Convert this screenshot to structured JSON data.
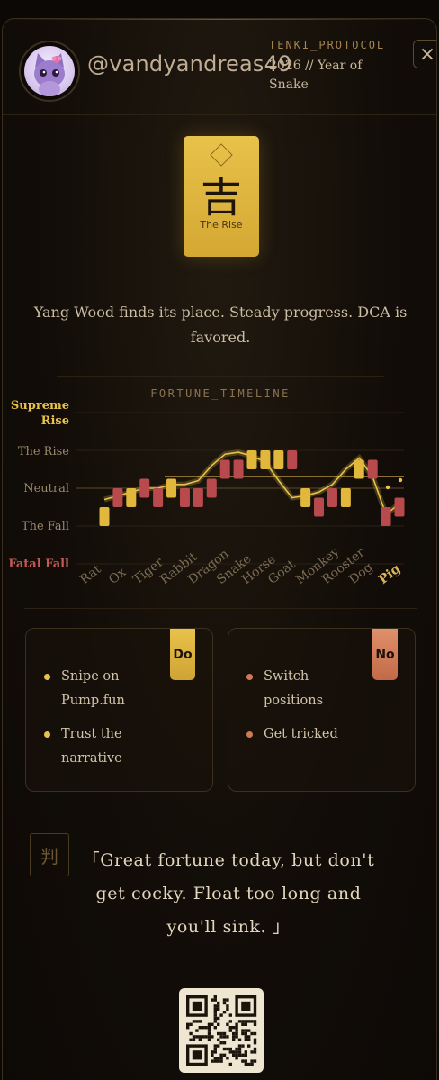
{
  "header": {
    "username": "@vandyandreas49",
    "protocol": "TENKI_PROTOCOL",
    "year_line": "2026 // Year of Snake",
    "close_glyph": "×"
  },
  "card": {
    "kanji": "吉",
    "label": "The Rise"
  },
  "reading": "Yang Wood finds its place. Steady progress. DCA is favored.",
  "timeline": {
    "title": "FORTUNE_TIMELINE",
    "highlight": "Pig"
  },
  "chart_data": {
    "type": "candlestick",
    "title": "FORTUNE_TIMELINE",
    "levels": [
      "Supreme Rise",
      "The Rise",
      "Neutral",
      "The Fall",
      "Fatal Fall"
    ],
    "level_colors": {
      "Supreme Rise": "#e8c24a",
      "The Rise": "#7a6a52",
      "Neutral": "#7a6a52",
      "The Fall": "#7a6a52",
      "Fatal Fall": "#c25a56"
    },
    "categories": [
      "Rat",
      "Ox",
      "Tiger",
      "Rabbit",
      "Dragon",
      "Snake",
      "Horse",
      "Goat",
      "Monkey",
      "Rooster",
      "Dog",
      "Pig"
    ],
    "candles": [
      {
        "open": 2.0,
        "close": 2.5,
        "dir": "up"
      },
      {
        "open": 2.5,
        "close": 3.0,
        "dir": "down"
      },
      {
        "open": 3.0,
        "close": 2.5,
        "dir": "up"
      },
      {
        "open": 2.75,
        "close": 3.25,
        "dir": "down"
      },
      {
        "open": 2.5,
        "close": 3.0,
        "dir": "down"
      },
      {
        "open": 3.25,
        "close": 2.75,
        "dir": "up"
      },
      {
        "open": 3.0,
        "close": 2.5,
        "dir": "down"
      },
      {
        "open": 3.0,
        "close": 2.5,
        "dir": "down"
      },
      {
        "open": 2.75,
        "close": 3.25,
        "dir": "down"
      },
      {
        "open": 3.25,
        "close": 3.75,
        "dir": "down"
      },
      {
        "open": 3.75,
        "close": 3.25,
        "dir": "down"
      },
      {
        "open": 3.5,
        "close": 4.0,
        "dir": "up"
      },
      {
        "open": 3.5,
        "close": 4.0,
        "dir": "up"
      },
      {
        "open": 3.5,
        "close": 4.0,
        "dir": "up"
      },
      {
        "open": 3.5,
        "close": 4.0,
        "dir": "down"
      },
      {
        "open": 3.0,
        "close": 2.5,
        "dir": "up"
      },
      {
        "open": 2.25,
        "close": 2.75,
        "dir": "down"
      },
      {
        "open": 2.5,
        "close": 3.0,
        "dir": "down"
      },
      {
        "open": 2.5,
        "close": 3.0,
        "dir": "up"
      },
      {
        "open": 3.25,
        "close": 3.75,
        "dir": "up"
      },
      {
        "open": 3.25,
        "close": 3.75,
        "dir": "down"
      },
      {
        "open": 2.0,
        "close": 2.5,
        "dir": "down"
      },
      {
        "open": 2.25,
        "close": 2.75,
        "dir": "down"
      }
    ],
    "trend": [
      2.7,
      2.8,
      2.9,
      3.0,
      3.0,
      3.1,
      3.1,
      3.2,
      3.6,
      3.9,
      3.95,
      3.85,
      3.7,
      3.2,
      2.75,
      2.8,
      2.9,
      3.1,
      3.5,
      3.8,
      3.3,
      2.3,
      2.6
    ],
    "colors": {
      "up": "#e2b83c",
      "down": "#b84a4e"
    },
    "grid": true,
    "legend": "none"
  },
  "do_box": {
    "tab": "Do",
    "items": [
      "Snipe on Pump.fun",
      "Trust the narrative"
    ],
    "color": "#e8c24a"
  },
  "no_box": {
    "tab": "No",
    "items": [
      "Switch positions",
      "Get tricked"
    ],
    "color": "#d07a55"
  },
  "verdict": {
    "seal": "判",
    "quote": "「Great fortune today, but don't get cocky. Float too long and you'll sink. 」"
  }
}
